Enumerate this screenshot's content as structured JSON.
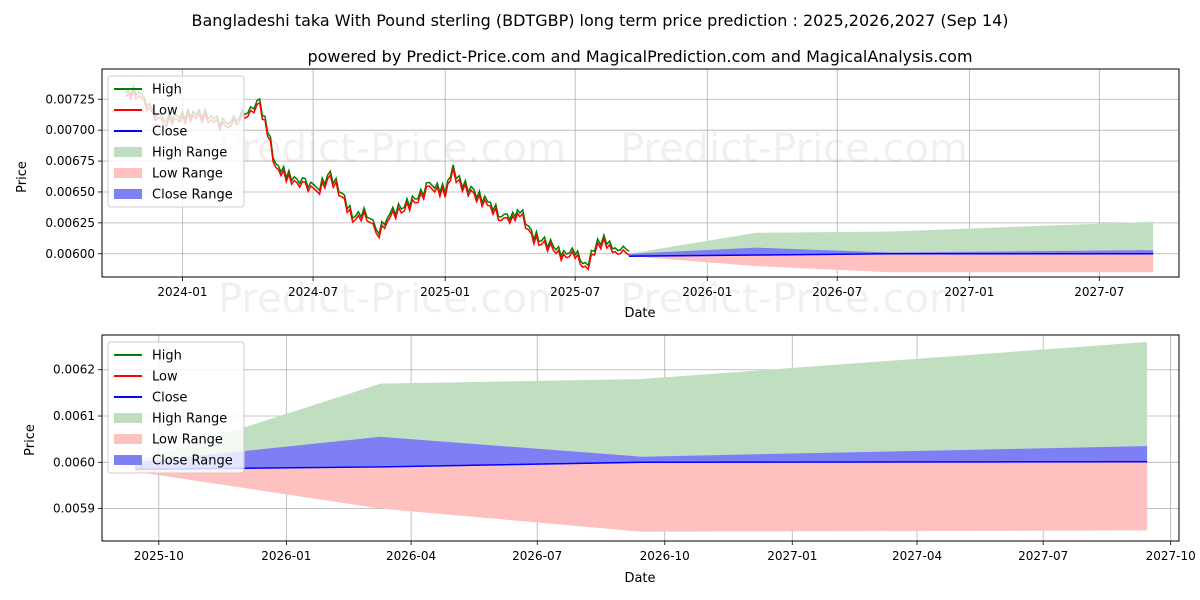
{
  "title": "Bangladeshi taka With Pound sterling (BDTGBP) long term price prediction : 2025,2026,2027 (Sep 14)",
  "subtitle": "powered by Predict-Price.com and MagicalPrediction.com and MagicalAnalysis.com",
  "watermark": "Predict-Price.com",
  "colors": {
    "high": "#008000",
    "low": "#ff0000",
    "close": "#0000ff",
    "high_range": "#c0dfc0",
    "low_range": "#ffc0c0",
    "close_range": "#7f7ff5"
  },
  "chart_data": [
    {
      "type": "line",
      "xlabel": "Date",
      "ylabel": "Price",
      "xlim": [
        "2023-09-11",
        "2027-10-20"
      ],
      "ylim": [
        0.005812,
        0.007495
      ],
      "x_ticks": [
        "2024-01",
        "2024-07",
        "2025-01",
        "2025-07",
        "2026-01",
        "2026-07",
        "2027-01",
        "2027-07"
      ],
      "y_ticks": [
        "0.00600",
        "0.00625",
        "0.00650",
        "0.00675",
        "0.00700",
        "0.00725"
      ],
      "grid": true,
      "legend_position": "top-left",
      "legend": [
        "High",
        "Low",
        "Close",
        "High Range",
        "Low Range",
        "Close Range"
      ],
      "history": {
        "dates": [
          "2023-10-14",
          "2023-11-01",
          "2023-11-20",
          "2023-12-10",
          "2024-01-01",
          "2024-01-20",
          "2024-02-10",
          "2024-03-01",
          "2024-03-20",
          "2024-04-05",
          "2024-04-14",
          "2024-04-25",
          "2024-05-10",
          "2024-06-01",
          "2024-06-20",
          "2024-07-10",
          "2024-07-25",
          "2024-08-10",
          "2024-08-25",
          "2024-09-10",
          "2024-10-01",
          "2024-10-20",
          "2024-11-05",
          "2024-11-20",
          "2024-12-10",
          "2025-01-01",
          "2025-01-12",
          "2025-01-25",
          "2025-02-10",
          "2025-03-01",
          "2025-03-20",
          "2025-04-05",
          "2025-04-15",
          "2025-05-01",
          "2025-05-15",
          "2025-06-01",
          "2025-06-15",
          "2025-07-01",
          "2025-07-15",
          "2025-07-28",
          "2025-08-10",
          "2025-08-22",
          "2025-09-02",
          "2025-09-14"
        ],
        "values": [
          0.00728,
          0.00731,
          0.00712,
          0.00708,
          0.0071,
          0.00712,
          0.0071,
          0.00702,
          0.00711,
          0.00713,
          0.00725,
          0.00708,
          0.0067,
          0.0066,
          0.00655,
          0.00653,
          0.00662,
          0.00648,
          0.00628,
          0.00632,
          0.00618,
          0.00632,
          0.00638,
          0.00642,
          0.00654,
          0.0065,
          0.00666,
          0.00655,
          0.00648,
          0.0064,
          0.0063,
          0.00628,
          0.00635,
          0.00614,
          0.0061,
          0.00604,
          0.00598,
          0.00601,
          0.00587,
          0.00603,
          0.00612,
          0.00601,
          0.00604,
          0.006
        ]
      },
      "forecast": {
        "dates": [
          "2025-09-14",
          "2026-03-10",
          "2026-09-14",
          "2027-09-14"
        ],
        "high_range_upper": [
          0.006,
          0.00617,
          0.00618,
          0.00626
        ],
        "low_range_lower": [
          0.00598,
          0.0059,
          0.00585,
          0.00585
        ],
        "close_range_upper": [
          0.006,
          0.00605,
          0.00601,
          0.00603
        ],
        "close_range_lower": [
          0.00598,
          0.00599,
          0.006,
          0.006
        ],
        "close": [
          0.00598,
          0.00599,
          0.006,
          0.006
        ]
      }
    },
    {
      "type": "line",
      "xlabel": "Date",
      "ylabel": "Price",
      "xlim": [
        "2025-08-21",
        "2027-10-07"
      ],
      "ylim": [
        0.00583,
        0.006275
      ],
      "x_ticks": [
        "2025-10",
        "2026-01",
        "2026-04",
        "2026-07",
        "2026-10",
        "2027-01",
        "2027-04",
        "2027-07",
        "2027-10"
      ],
      "y_ticks": [
        "0.0059",
        "0.0060",
        "0.0061",
        "0.0062"
      ],
      "grid": true,
      "legend_position": "top-left",
      "legend": [
        "High",
        "Low",
        "Close",
        "High Range",
        "Low Range",
        "Close Range"
      ],
      "forecast": {
        "dates": [
          "2025-09-14",
          "2026-03-10",
          "2026-09-14",
          "2027-09-14"
        ],
        "high_range_upper": [
          0.006,
          0.00617,
          0.00618,
          0.00626
        ],
        "low_range_lower": [
          0.00598,
          0.0059,
          0.00585,
          0.005853
        ],
        "close_range_upper": [
          0.006,
          0.006055,
          0.006012,
          0.006035
        ],
        "close_range_lower": [
          0.005985,
          0.005992,
          0.006,
          0.006001
        ],
        "close": [
          0.005985,
          0.00599,
          0.006,
          0.006001
        ]
      }
    }
  ]
}
